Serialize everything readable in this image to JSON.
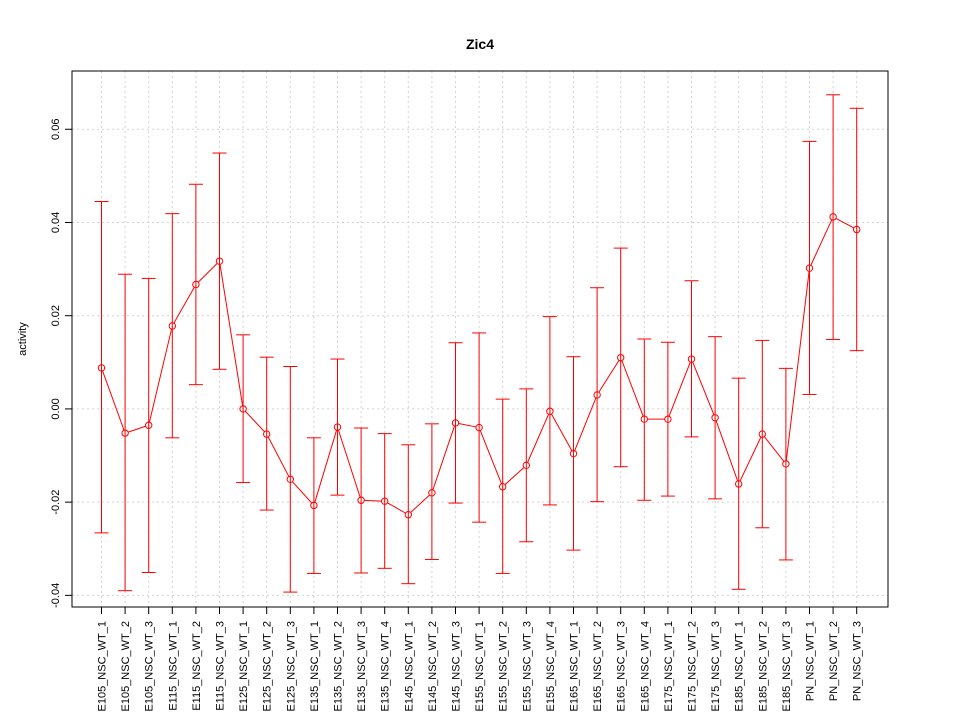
{
  "chart_data": {
    "type": "line",
    "title": "Zic4",
    "xlabel": "",
    "ylabel": "activity",
    "ylim": [
      -0.0425,
      0.0725
    ],
    "yticks": [
      -0.04,
      -0.02,
      0.0,
      0.02,
      0.04,
      0.06
    ],
    "ytick_labels": [
      "-0.04",
      "-0.02",
      "0.00",
      "0.02",
      "0.04",
      "0.06"
    ],
    "grid": true,
    "series_color": "#ff0000",
    "grid_color": "#d3d3d3",
    "categories": [
      "E105_NSC_WT_1",
      "E105_NSC_WT_2",
      "E105_NSC_WT_3",
      "E115_NSC_WT_1",
      "E115_NSC_WT_2",
      "E115_NSC_WT_3",
      "E125_NSC_WT_1",
      "E125_NSC_WT_2",
      "E125_NSC_WT_3",
      "E135_NSC_WT_1",
      "E135_NSC_WT_2",
      "E135_NSC_WT_3",
      "E135_NSC_WT_4",
      "E145_NSC_WT_1",
      "E145_NSC_WT_2",
      "E145_NSC_WT_3",
      "E155_NSC_WT_1",
      "E155_NSC_WT_2",
      "E155_NSC_WT_3",
      "E155_NSC_WT_4",
      "E165_NSC_WT_1",
      "E165_NSC_WT_2",
      "E165_NSC_WT_3",
      "E165_NSC_WT_4",
      "E175_NSC_WT_1",
      "E175_NSC_WT_2",
      "E175_NSC_WT_3",
      "E185_NSC_WT_1",
      "E185_NSC_WT_2",
      "E185_NSC_WT_3",
      "PN_NSC_WT_1",
      "PN_NSC_WT_2",
      "PN_NSC_WT_3"
    ],
    "values": [
      0.0088,
      -0.0052,
      -0.0035,
      0.0178,
      0.0267,
      0.0317,
      0.0,
      -0.0054,
      -0.0151,
      -0.0207,
      -0.0039,
      -0.0196,
      -0.0198,
      -0.0227,
      -0.018,
      -0.003,
      -0.004,
      -0.0167,
      -0.0121,
      -0.0005,
      -0.0096,
      0.003,
      0.011,
      -0.0022,
      -0.0022,
      0.0107,
      -0.0019,
      -0.0161,
      -0.0054,
      -0.0118,
      0.0302,
      0.0412,
      0.0385
    ],
    "upper": [
      0.0445,
      0.0289,
      0.028,
      0.0419,
      0.0482,
      0.0549,
      0.0159,
      0.0111,
      0.0091,
      -0.0062,
      0.0107,
      -0.0041,
      -0.0053,
      -0.0077,
      -0.0032,
      0.0142,
      0.0163,
      0.0021,
      0.0043,
      0.0198,
      0.0112,
      0.026,
      0.0345,
      0.015,
      0.0143,
      0.0275,
      0.0155,
      0.0066,
      0.0147,
      0.0087,
      0.0574,
      0.0674,
      0.0645
    ],
    "lower": [
      -0.0266,
      -0.039,
      -0.0351,
      -0.0062,
      0.0052,
      0.0085,
      -0.0158,
      -0.0217,
      -0.0393,
      -0.0353,
      -0.0185,
      -0.0352,
      -0.0342,
      -0.0375,
      -0.0323,
      -0.0202,
      -0.0243,
      -0.0353,
      -0.0285,
      -0.0206,
      -0.0303,
      -0.0199,
      -0.0124,
      -0.0196,
      -0.0187,
      -0.006,
      -0.0193,
      -0.0387,
      -0.0255,
      -0.0324,
      0.0031,
      0.0149,
      0.0125
    ]
  }
}
